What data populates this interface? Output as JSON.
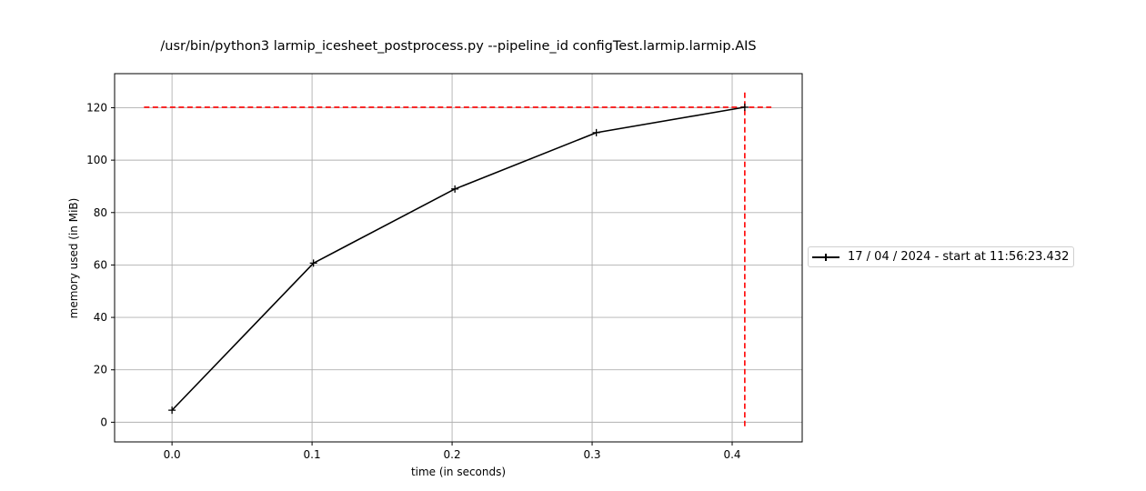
{
  "chart_data": {
    "type": "line",
    "title": "/usr/bin/python3 larmip_icesheet_postprocess.py --pipeline_id configTest.larmip.larmip.AIS",
    "xlabel": "time (in seconds)",
    "ylabel": "memory used (in MiB)",
    "xlim": [
      -0.041,
      0.45
    ],
    "ylim": [
      -7.5,
      133
    ],
    "xticks": [
      0.0,
      0.1,
      0.2,
      0.3,
      0.4
    ],
    "xtick_labels": [
      "0.0",
      "0.1",
      "0.2",
      "0.3",
      "0.4"
    ],
    "yticks": [
      0,
      20,
      40,
      60,
      80,
      100,
      120
    ],
    "ytick_labels": [
      "0",
      "20",
      "40",
      "60",
      "80",
      "100",
      "120"
    ],
    "grid": true,
    "legend_position": "right",
    "series": [
      {
        "name": "17 / 04 / 2024 - start at 11:56:23.432",
        "color": "#000000",
        "marker": "plus",
        "x": [
          0.0,
          0.101,
          0.202,
          0.303,
          0.409
        ],
        "y": [
          4.6,
          60.7,
          89.0,
          110.5,
          120.2
        ]
      }
    ],
    "reference_lines": [
      {
        "orientation": "horizontal",
        "y": 120.2,
        "x_range": [
          -0.02,
          0.428
        ],
        "color": "#ff0000",
        "style": "dashed"
      },
      {
        "orientation": "vertical",
        "x": 0.409,
        "y_range": [
          -1.5,
          126.2
        ],
        "color": "#ff0000",
        "style": "dashed"
      }
    ]
  }
}
